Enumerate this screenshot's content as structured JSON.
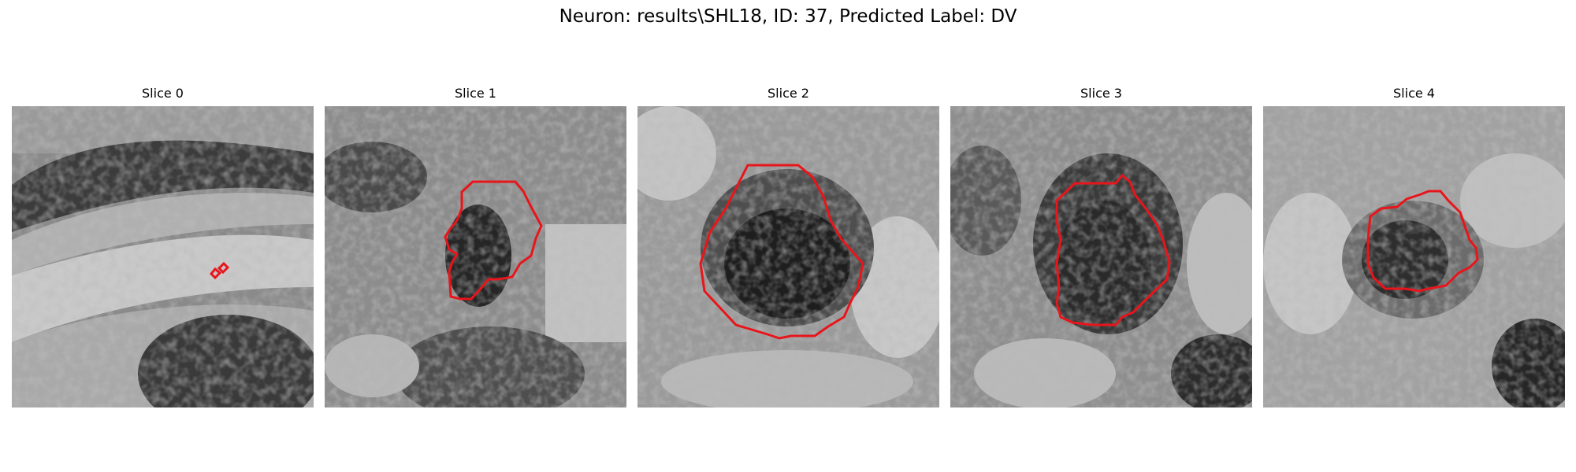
{
  "figure": {
    "title": "Neuron: results\\SHL18, ID: 37, Predicted Label: DV"
  },
  "panels": [
    {
      "title": "Slice 0",
      "image": "grayscale-microscopy-slice",
      "contour_color": "#e8151b"
    },
    {
      "title": "Slice 1",
      "image": "grayscale-microscopy-slice",
      "contour_color": "#e8151b"
    },
    {
      "title": "Slice 2",
      "image": "grayscale-microscopy-slice",
      "contour_color": "#e8151b"
    },
    {
      "title": "Slice 3",
      "image": "grayscale-microscopy-slice",
      "contour_color": "#e8151b"
    },
    {
      "title": "Slice 4",
      "image": "grayscale-microscopy-slice",
      "contour_color": "#e8151b"
    }
  ]
}
